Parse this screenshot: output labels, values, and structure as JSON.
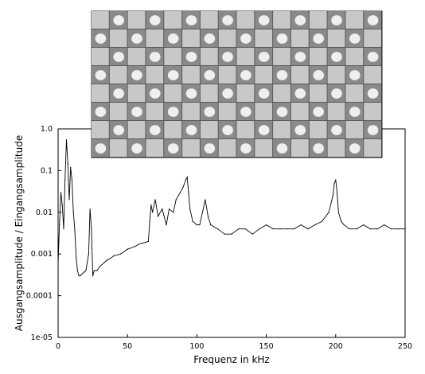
{
  "chart_data": {
    "type": "line",
    "xlabel": "Frequenz in kHz",
    "ylabel": "Ausgangsamplitude / Eingangsamplitude",
    "xlim": [
      0,
      250
    ],
    "ylim": [
      1e-05,
      1.0
    ],
    "y_scale": "log",
    "grid": false,
    "x_ticks": [
      0,
      50,
      100,
      150,
      200,
      250
    ],
    "x_tick_labels": [
      "0",
      "50",
      "100",
      "150",
      "200",
      "250"
    ],
    "y_ticks": [
      1e-05,
      0.0001,
      0.001,
      0.01,
      0.1,
      1.0
    ],
    "y_tick_labels": [
      "1e-05",
      "0.0001",
      "0.001",
      "0.01",
      "0.1",
      "1.0"
    ],
    "series": [
      {
        "color": "#000000",
        "x": [
          0,
          1,
          2,
          3,
          4,
          5,
          6,
          7,
          8,
          9,
          10,
          11,
          12,
          13,
          14,
          15,
          16,
          18,
          20,
          22,
          23,
          24,
          25,
          26,
          28,
          30,
          35,
          38,
          40,
          45,
          50,
          55,
          58,
          60,
          63,
          65,
          66,
          67,
          68,
          70,
          72,
          75,
          78,
          80,
          83,
          85,
          88,
          90,
          92,
          93,
          94,
          95,
          97,
          100,
          102,
          104,
          106,
          108,
          110,
          115,
          120,
          125,
          130,
          135,
          140,
          145,
          150,
          155,
          160,
          165,
          170,
          175,
          180,
          185,
          190,
          195,
          198,
          199,
          200,
          201,
          202,
          204,
          206,
          210,
          215,
          220,
          225,
          230,
          235,
          240,
          245,
          250
        ],
        "y": [
          0.0006,
          0.005,
          0.03,
          0.015,
          0.004,
          0.06,
          0.55,
          0.15,
          0.02,
          0.12,
          0.06,
          0.01,
          0.004,
          0.0008,
          0.0004,
          0.0003,
          0.0003,
          0.00035,
          0.0004,
          0.001,
          0.012,
          0.004,
          0.0003,
          0.0004,
          0.0004,
          0.0005,
          0.0007,
          0.0008,
          0.0009,
          0.001,
          0.0013,
          0.0015,
          0.0017,
          0.0018,
          0.0019,
          0.002,
          0.006,
          0.015,
          0.01,
          0.02,
          0.008,
          0.012,
          0.005,
          0.012,
          0.01,
          0.02,
          0.03,
          0.04,
          0.06,
          0.07,
          0.03,
          0.012,
          0.006,
          0.005,
          0.005,
          0.01,
          0.02,
          0.008,
          0.005,
          0.004,
          0.003,
          0.003,
          0.004,
          0.004,
          0.003,
          0.004,
          0.005,
          0.004,
          0.004,
          0.004,
          0.004,
          0.005,
          0.004,
          0.005,
          0.006,
          0.01,
          0.025,
          0.05,
          0.06,
          0.03,
          0.01,
          0.006,
          0.005,
          0.004,
          0.004,
          0.005,
          0.004,
          0.004,
          0.005,
          0.004,
          0.004,
          0.004
        ]
      }
    ]
  }
}
